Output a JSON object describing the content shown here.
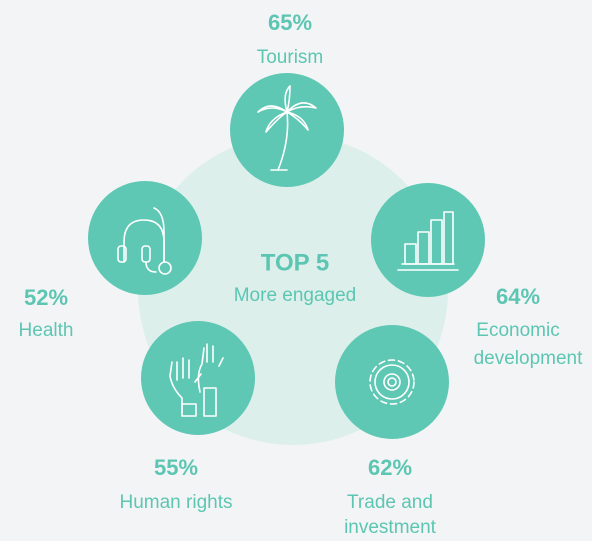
{
  "center": {
    "title": "TOP 5",
    "subtitle": "More engaged"
  },
  "items": [
    {
      "value": "65%",
      "label": [
        "Tourism"
      ]
    },
    {
      "value": "64%",
      "label": [
        "Economic",
        "development"
      ]
    },
    {
      "value": "62%",
      "label": [
        "Trade and",
        "investment"
      ]
    },
    {
      "value": "55%",
      "label": [
        "Human rights"
      ]
    },
    {
      "value": "52%",
      "label": [
        "Health"
      ]
    }
  ]
}
